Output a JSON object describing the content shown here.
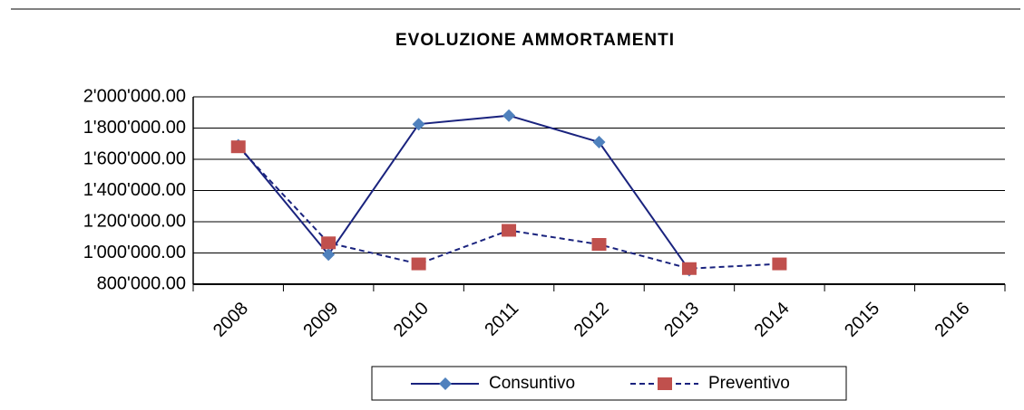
{
  "chart_data": {
    "type": "line",
    "title": "EVOLUZIONE AMMORTAMENTI",
    "categories": [
      "2008",
      "2009",
      "2010",
      "2011",
      "2012",
      "2013",
      "2014",
      "2015",
      "2016"
    ],
    "series": [
      {
        "name": "Consuntivo",
        "color": "#1a237e",
        "marker_color": "#4f81bd",
        "marker": "diamond",
        "line_style": "solid",
        "values": [
          1690000,
          990000,
          1825000,
          1880000,
          1710000,
          890000,
          null,
          null,
          null
        ]
      },
      {
        "name": "Preventivo",
        "color": "#1a237e",
        "marker_color": "#c0504d",
        "marker": "square",
        "line_style": "dashed",
        "values": [
          1680000,
          1065000,
          930000,
          1145000,
          1055000,
          900000,
          930000,
          null,
          null
        ]
      }
    ],
    "ylim": [
      800000,
      2000000
    ],
    "yticks": [
      {
        "value": 800000,
        "label": "800'000.00"
      },
      {
        "value": 1000000,
        "label": "1'000'000.00"
      },
      {
        "value": 1200000,
        "label": "1'200'000.00"
      },
      {
        "value": 1400000,
        "label": "1'400'000.00"
      },
      {
        "value": 1600000,
        "label": "1'600'000.00"
      },
      {
        "value": 1800000,
        "label": "1'800'000.00"
      },
      {
        "value": 2000000,
        "label": "2'000'000.00"
      }
    ],
    "grid": true,
    "legend": "bottom"
  }
}
